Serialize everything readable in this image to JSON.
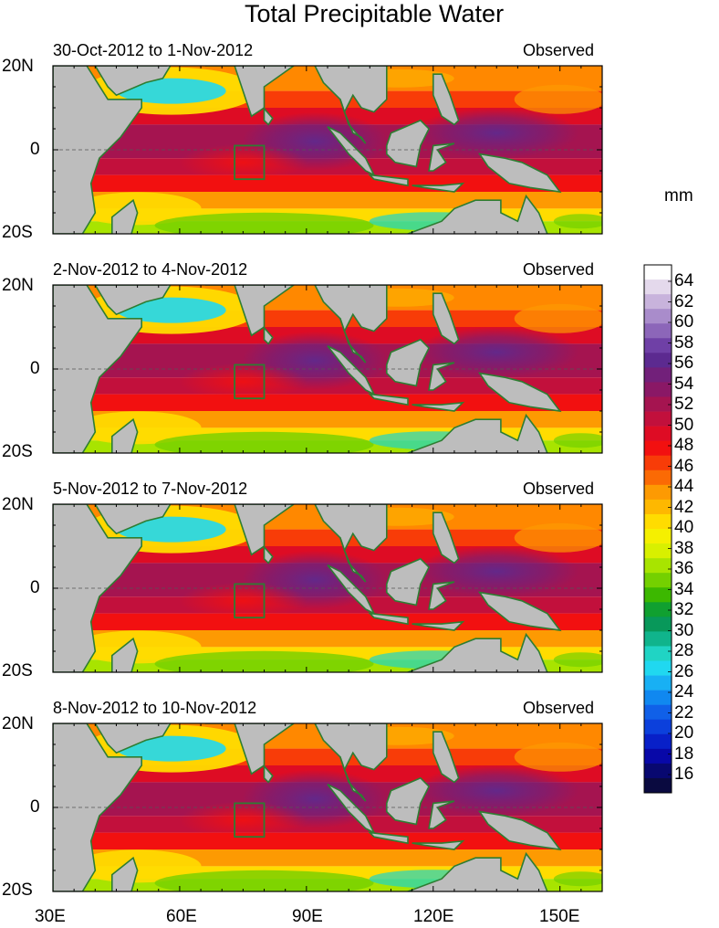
{
  "title": "Total Precipitable Water",
  "panels": [
    {
      "date_range": "30-Oct-2012 to 1-Nov-2012",
      "tag": "Observed"
    },
    {
      "date_range": "2-Nov-2012 to 4-Nov-2012",
      "tag": "Observed"
    },
    {
      "date_range": "5-Nov-2012 to 7-Nov-2012",
      "tag": "Observed"
    },
    {
      "date_range": "8-Nov-2012 to 10-Nov-2012",
      "tag": "Observed"
    }
  ],
  "axes": {
    "lat_labels": [
      "20N",
      "0",
      "20S"
    ],
    "lon_labels": [
      "30E",
      "60E",
      "90E",
      "120E",
      "150E"
    ],
    "lon_range": [
      30,
      160
    ],
    "lat_range": [
      -20,
      20
    ]
  },
  "colorbar": {
    "unit": "mm",
    "labels": [
      "64",
      "62",
      "60",
      "58",
      "56",
      "54",
      "52",
      "50",
      "48",
      "46",
      "44",
      "42",
      "40",
      "38",
      "36",
      "34",
      "32",
      "30",
      "28",
      "26",
      "24",
      "22",
      "20",
      "18",
      "16"
    ],
    "colors": [
      "#ffffff",
      "#e4d9ec",
      "#c8b3dc",
      "#a98ccb",
      "#8c66b9",
      "#6f40a6",
      "#5c2a90",
      "#72207a",
      "#8a1866",
      "#a51450",
      "#c2103c",
      "#de0c24",
      "#f21010",
      "#f83c08",
      "#fb6a04",
      "#fd9a02",
      "#feb800",
      "#ffdc00",
      "#f5f000",
      "#d8f000",
      "#a8e400",
      "#74d000",
      "#3cb800",
      "#10a030",
      "#08985a",
      "#10b48c",
      "#20d4c4",
      "#20d8f0",
      "#18b0f4",
      "#1088f0",
      "#1060e8",
      "#0c40dc",
      "#0820c8",
      "#0808a8",
      "#080870",
      "#0a0a40"
    ]
  },
  "box_region": {
    "lon": [
      73,
      80
    ],
    "lat": [
      -7,
      1
    ]
  }
}
